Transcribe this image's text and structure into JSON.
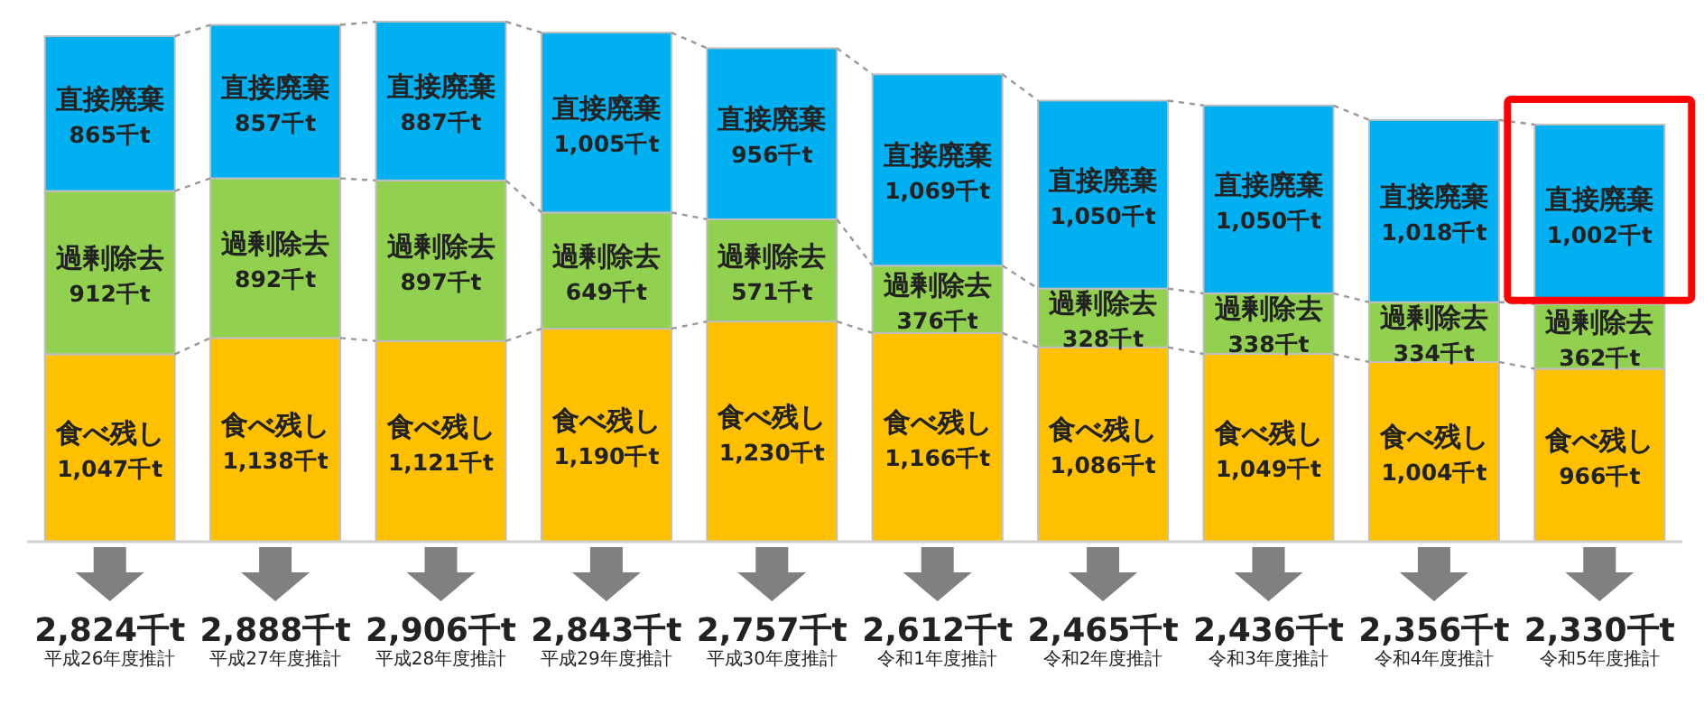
{
  "chart_data": {
    "type": "bar",
    "stacked": true,
    "categories": [
      "平成26年度推計",
      "平成27年度推計",
      "平成28年度推計",
      "平成29年度推計",
      "平成30年度推計",
      "令和1年度推計",
      "令和2年度推計",
      "令和3年度推計",
      "令和4年度推計",
      "令和5年度推計"
    ],
    "series": [
      {
        "name": "食べ残し",
        "color": "#ffc000",
        "values": [
          1047,
          1138,
          1121,
          1190,
          1230,
          1166,
          1086,
          1049,
          1004,
          966
        ],
        "value_labels": [
          "1,047千t",
          "1,138千t",
          "1,121千t",
          "1,190千t",
          "1,230千t",
          "1,166千t",
          "1,086千t",
          "1,049千t",
          "1,004千t",
          "966千t"
        ]
      },
      {
        "name": "過剰除去",
        "color": "#92d050",
        "values": [
          912,
          892,
          897,
          649,
          571,
          376,
          328,
          338,
          334,
          362
        ],
        "value_labels": [
          "912千t",
          "892千t",
          "897千t",
          "649千t",
          "571千t",
          "376千t",
          "328千t",
          "338千t",
          "334千t",
          "362千t"
        ]
      },
      {
        "name": "直接廃棄",
        "color": "#00b0f0",
        "values": [
          865,
          857,
          887,
          1005,
          956,
          1069,
          1050,
          1050,
          1018,
          1002
        ],
        "value_labels": [
          "865千t",
          "857千t",
          "887千t",
          "1,005千t",
          "956千t",
          "1,069千t",
          "1,050千t",
          "1,050千t",
          "1,018千t",
          "1,002千t"
        ]
      }
    ],
    "totals": [
      "2,824千t",
      "2,888千t",
      "2,906千t",
      "2,843千t",
      "2,757千t",
      "2,612千t",
      "2,465千t",
      "2,436千t",
      "2,356千t",
      "2,330千t"
    ]
  }
}
